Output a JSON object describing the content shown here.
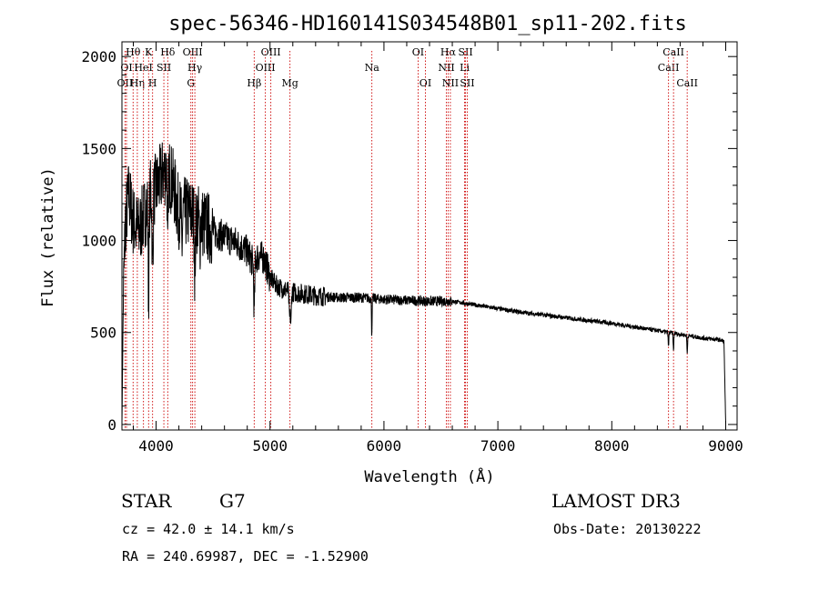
{
  "chart_data": {
    "type": "line",
    "title": "spec-56346-HD160141S034548B01_sp11-202.fits",
    "xlabel": "Wavelength (Å)",
    "ylabel": "Flux (relative)",
    "xlim": [
      3700,
      9100
    ],
    "ylim": [
      -30,
      2080
    ],
    "xticks": [
      4000,
      5000,
      6000,
      7000,
      8000,
      9000
    ],
    "xtick_labels": [
      "4000",
      "5000",
      "6000",
      "7000",
      "8000",
      "9000"
    ],
    "yticks": [
      0,
      500,
      1000,
      1500,
      2000
    ],
    "ytick_labels": [
      "0",
      "500",
      "1000",
      "1500",
      "2000"
    ],
    "series": [
      {
        "name": "flux",
        "continuum": [
          [
            3700,
            0
          ],
          [
            3712,
            700
          ],
          [
            3730,
            1100
          ],
          [
            3760,
            1250
          ],
          [
            3800,
            1100
          ],
          [
            3850,
            1050
          ],
          [
            3900,
            1150
          ],
          [
            3950,
            1250
          ],
          [
            4000,
            1280
          ],
          [
            4050,
            1350
          ],
          [
            4100,
            1400
          ],
          [
            4150,
            1300
          ],
          [
            4200,
            1150
          ],
          [
            4300,
            1150
          ],
          [
            4400,
            1100
          ],
          [
            4500,
            1050
          ],
          [
            4600,
            1020
          ],
          [
            4700,
            990
          ],
          [
            4800,
            940
          ],
          [
            4850,
            880
          ],
          [
            4900,
            920
          ],
          [
            4950,
            900
          ],
          [
            5000,
            800
          ],
          [
            5050,
            760
          ],
          [
            5100,
            740
          ],
          [
            5200,
            720
          ],
          [
            5400,
            700
          ],
          [
            5600,
            690
          ],
          [
            5800,
            690
          ],
          [
            6000,
            680
          ],
          [
            6200,
            675
          ],
          [
            6400,
            670
          ],
          [
            6600,
            670
          ],
          [
            6800,
            650
          ],
          [
            7000,
            630
          ],
          [
            7200,
            610
          ],
          [
            7400,
            595
          ],
          [
            7600,
            580
          ],
          [
            7800,
            565
          ],
          [
            8000,
            550
          ],
          [
            8200,
            530
          ],
          [
            8400,
            510
          ],
          [
            8600,
            490
          ],
          [
            8800,
            470
          ],
          [
            8950,
            460
          ],
          [
            8985,
            450
          ],
          [
            8990,
            300
          ],
          [
            8995,
            150
          ],
          [
            9000,
            5
          ]
        ],
        "absorption": [
          [
            3934,
            500,
            6
          ],
          [
            3969,
            420,
            6
          ],
          [
            4102,
            500,
            5
          ],
          [
            4227,
            180,
            6
          ],
          [
            4340,
            300,
            6
          ],
          [
            4383,
            150,
            5
          ],
          [
            4861,
            280,
            6
          ],
          [
            5173,
            150,
            8
          ],
          [
            5184,
            150,
            5
          ],
          [
            5893,
            190,
            4
          ],
          [
            8498,
            80,
            4
          ],
          [
            8542,
            100,
            4
          ],
          [
            8662,
            100,
            4
          ]
        ]
      }
    ],
    "spectral_lines": [
      {
        "label": "OII",
        "wl": 3727,
        "row": 2
      },
      {
        "label": "OI",
        "wl": 3740,
        "row": 1
      },
      {
        "label": "Hθ",
        "wl": 3798,
        "row": 0
      },
      {
        "label": "Hη",
        "wl": 3835,
        "row": 2
      },
      {
        "label": "HeI",
        "wl": 3889,
        "row": 1
      },
      {
        "label": "K",
        "wl": 3934,
        "row": 0
      },
      {
        "label": "H",
        "wl": 3969,
        "row": 2
      },
      {
        "label": "SII",
        "wl": 4068,
        "row": 1
      },
      {
        "label": "Hδ",
        "wl": 4102,
        "row": 0
      },
      {
        "label": "G",
        "wl": 4305,
        "row": 2
      },
      {
        "label": "OIII",
        "wl": 4320,
        "row": 0
      },
      {
        "label": "Hγ",
        "wl": 4340,
        "row": 1
      },
      {
        "label": "Hβ",
        "wl": 4861,
        "row": 2
      },
      {
        "label": "OIII",
        "wl": 4959,
        "row": 1
      },
      {
        "label": "OIII",
        "wl": 5007,
        "row": 0
      },
      {
        "label": "Mg",
        "wl": 5175,
        "row": 2
      },
      {
        "label": "Na",
        "wl": 5894,
        "row": 1
      },
      {
        "label": "OI",
        "wl": 6300,
        "row": 0
      },
      {
        "label": "OI",
        "wl": 6364,
        "row": 2
      },
      {
        "label": "NII",
        "wl": 6548,
        "row": 1
      },
      {
        "label": "Hα",
        "wl": 6563,
        "row": 0
      },
      {
        "label": "NII",
        "wl": 6583,
        "row": 2
      },
      {
        "label": "SII",
        "wl": 6716,
        "row": 0
      },
      {
        "label": "Li",
        "wl": 6708,
        "row": 1
      },
      {
        "label": "SII",
        "wl": 6731,
        "row": 2
      },
      {
        "label": "CaII",
        "wl": 8498,
        "row": 1
      },
      {
        "label": "CaII",
        "wl": 8542,
        "row": 0
      },
      {
        "label": "CaII",
        "wl": 8662,
        "row": 2
      }
    ]
  },
  "info": {
    "object_type": "STAR",
    "subclass": "G7",
    "survey": "LAMOST DR3",
    "cz": "cz = 42.0 ± 14.1 km/s",
    "obs_date": "Obs-Date: 20130222",
    "coords": "RA = 240.69987, DEC =  -1.52900"
  }
}
